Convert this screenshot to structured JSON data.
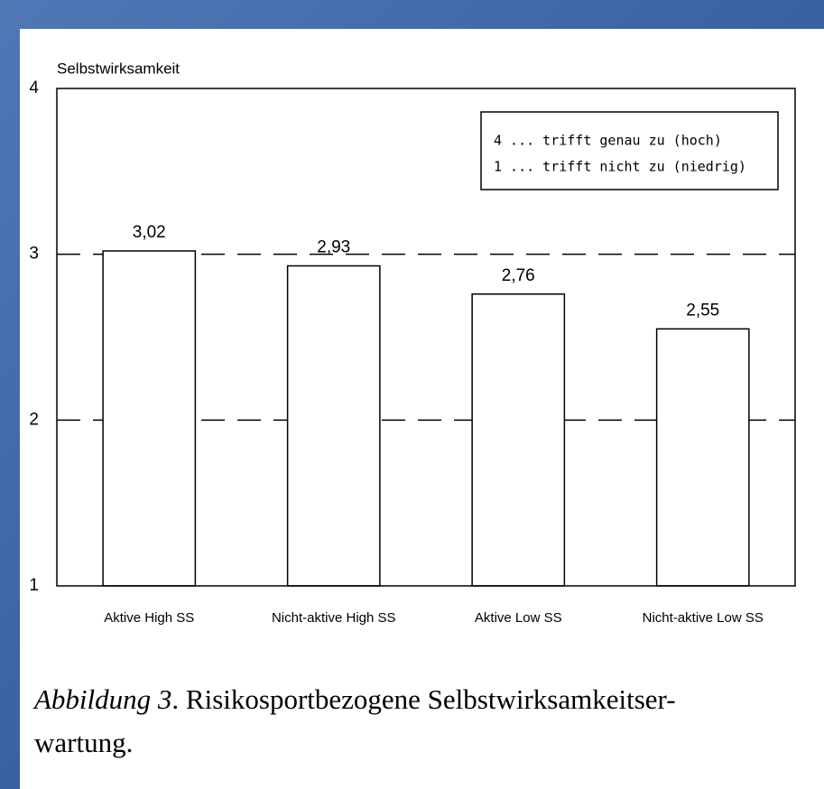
{
  "chart_data": {
    "type": "bar",
    "y_label": "Selbstwirksamkeit",
    "categories": [
      "Aktive High SS",
      "Nicht-aktive High SS",
      "Aktive Low SS",
      "Nicht-aktive Low SS"
    ],
    "values": [
      3.02,
      2.93,
      2.76,
      2.55
    ],
    "value_labels": [
      "3,02",
      "2,93",
      "2,76",
      "2,55"
    ],
    "color": "#ffffff",
    "ylim": [
      1,
      4
    ],
    "yticks": [
      1,
      2,
      3,
      4
    ],
    "grid": true,
    "annotations": [
      "4 ... trifft genau zu (hoch)",
      "1 ... trifft nicht zu (niedrig)"
    ],
    "caption": {
      "label": "Abbildung 3",
      "line1": ". Risikosportbezogene Selbstwirksamkeitser-",
      "line2": "wartung."
    }
  }
}
